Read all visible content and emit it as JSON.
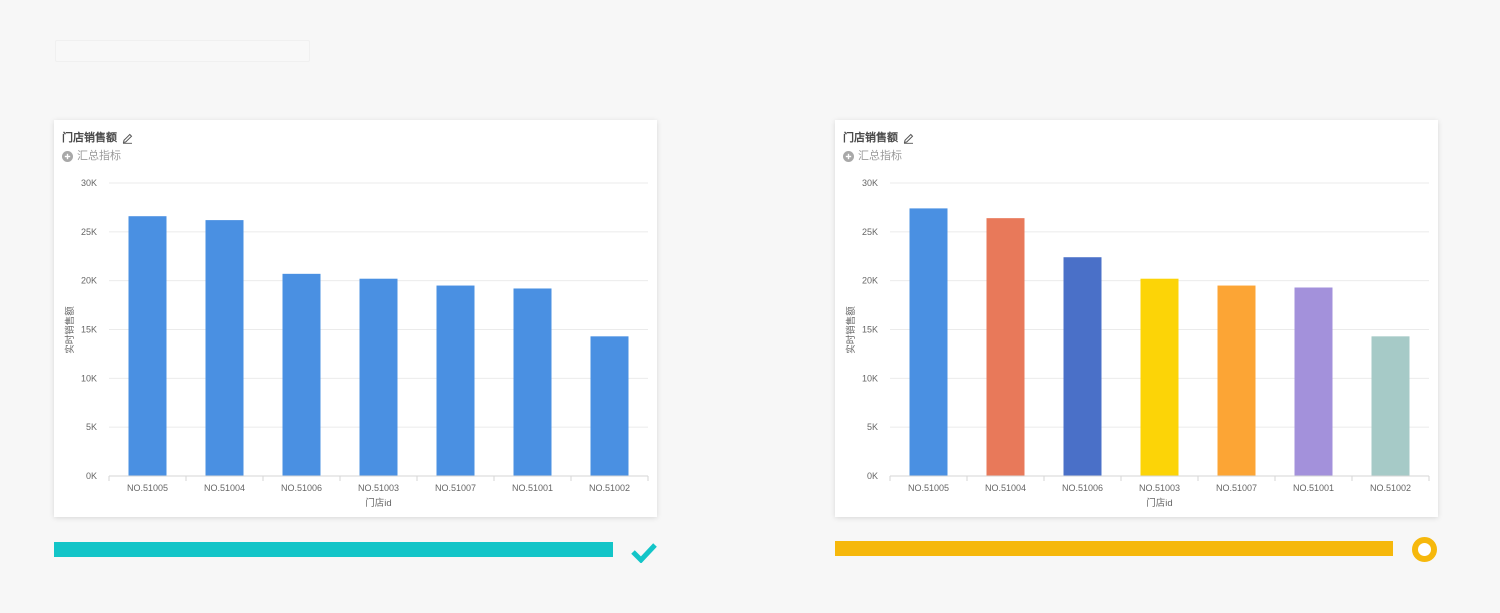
{
  "page": {
    "background": "#f7f7f7"
  },
  "cards": [
    {
      "add_metric_label": "汇总指标",
      "edit_icon": "pencil-icon",
      "add_icon": "plus-circle-icon",
      "status": {
        "icon": "check-icon",
        "color": "#13c5c8"
      }
    },
    {
      "add_metric_label": "汇总指标",
      "edit_icon": "pencil-icon",
      "add_icon": "plus-circle-icon",
      "status": {
        "icon": "ring-icon",
        "color": "#f6b80c"
      }
    }
  ],
  "chart_data": [
    {
      "type": "bar",
      "title": "门店销售额",
      "xlabel": "门店id",
      "ylabel": "实时销售额",
      "categories": [
        "NO.51005",
        "NO.51004",
        "NO.51006",
        "NO.51003",
        "NO.51007",
        "NO.51001",
        "NO.51002"
      ],
      "values": [
        26600,
        26200,
        20700,
        20200,
        19500,
        19200,
        14300
      ],
      "ylim": [
        0,
        30000
      ],
      "yticks": [
        0,
        5000,
        10000,
        15000,
        20000,
        25000,
        30000
      ],
      "ytick_labels": [
        "0K",
        "5K",
        "10K",
        "15K",
        "20K",
        "25K",
        "30K"
      ],
      "bar_colors": [
        "#4a90e2",
        "#4a90e2",
        "#4a90e2",
        "#4a90e2",
        "#4a90e2",
        "#4a90e2",
        "#4a90e2"
      ],
      "grid": true,
      "legend": "none"
    },
    {
      "type": "bar",
      "title": "门店销售额",
      "xlabel": "门店id",
      "ylabel": "实时销售额",
      "categories": [
        "NO.51005",
        "NO.51004",
        "NO.51006",
        "NO.51003",
        "NO.51007",
        "NO.51001",
        "NO.51002"
      ],
      "values": [
        27400,
        26400,
        22400,
        20200,
        19500,
        19300,
        14300
      ],
      "ylim": [
        0,
        30000
      ],
      "yticks": [
        0,
        5000,
        10000,
        15000,
        20000,
        25000,
        30000
      ],
      "ytick_labels": [
        "0K",
        "5K",
        "10K",
        "15K",
        "20K",
        "25K",
        "30K"
      ],
      "bar_colors": [
        "#4a90e2",
        "#e8795a",
        "#4a70c8",
        "#fcd407",
        "#fca535",
        "#a391db",
        "#a6cac7"
      ],
      "grid": true,
      "legend": "none"
    }
  ]
}
